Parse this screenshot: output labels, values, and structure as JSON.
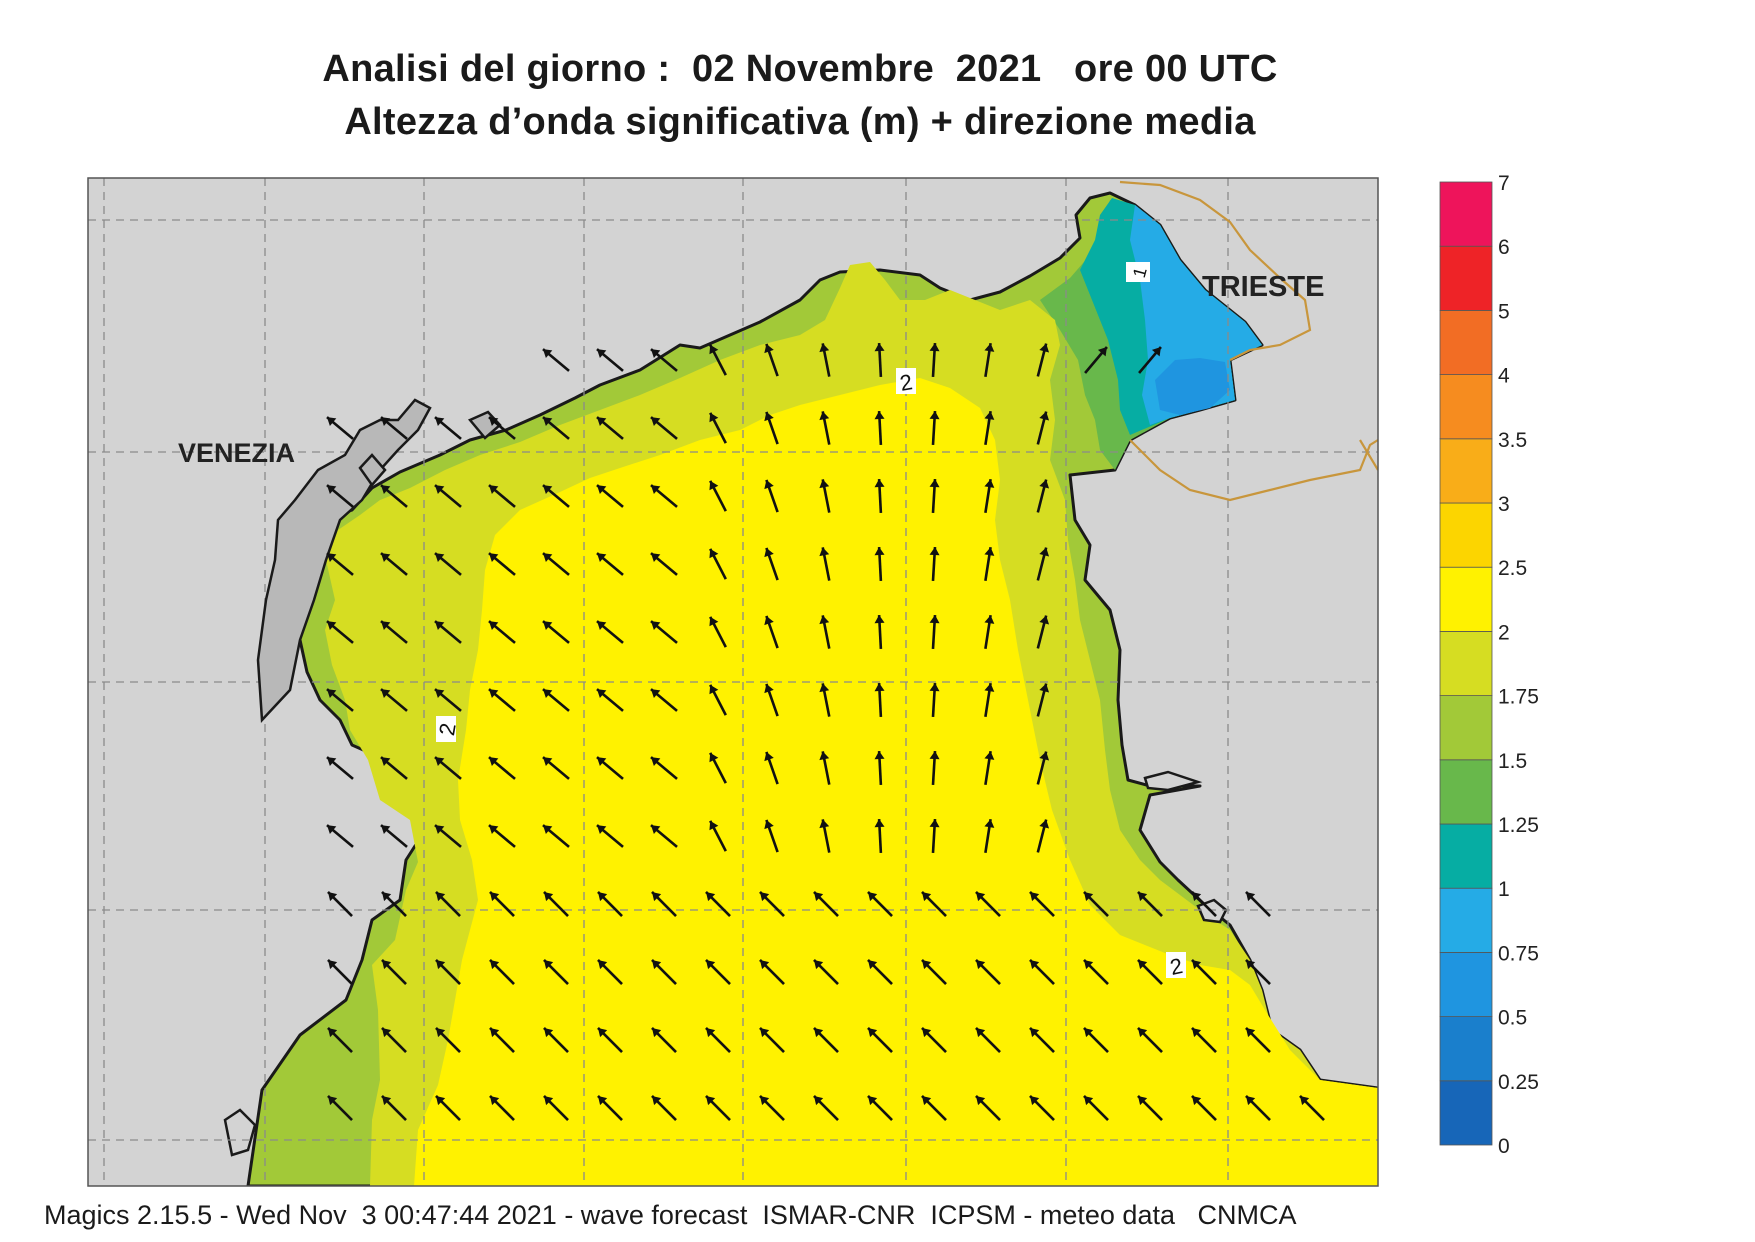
{
  "header": {
    "title_line1": "Analisi del giorno :  02 Novembre  2021   ore 00 UTC",
    "title_line2": "Altezza d’onda significativa (m) + direzione media"
  },
  "map": {
    "places": {
      "venezia": "VENEZIA",
      "trieste": "TRIESTE"
    },
    "contour_labels": {
      "c2_top": "2",
      "c2_west": "2",
      "c2_south": "2",
      "c1_ne": "1"
    },
    "colors": {
      "land": "#d3d3d3",
      "coast": "#1a1a1a",
      "border": "#c8963c",
      "arrow": "#111111"
    }
  },
  "legend": {
    "unit": "m",
    "levels": [
      "0",
      "0.25",
      "0.5",
      "0.75",
      "1",
      "1.25",
      "1.5",
      "1.75",
      "2",
      "2.5",
      "3",
      "3.5",
      "4",
      "5",
      "6",
      "7"
    ],
    "colors": [
      "#1766b8",
      "#1a7fcc",
      "#1f95e0",
      "#25abe6",
      "#06ada3",
      "#68b84b",
      "#a2c938",
      "#d6dd22",
      "#fff200",
      "#fcd500",
      "#f9ad18",
      "#f68c1f",
      "#f26d24",
      "#ee2327",
      "#ee145b"
    ]
  },
  "footer": {
    "text": "Magics 2.15.5 - Wed Nov  3 00:47:44 2021 - wave forecast  ISMAR-CNR  ICPSM - meteo data   CNMCA"
  }
}
